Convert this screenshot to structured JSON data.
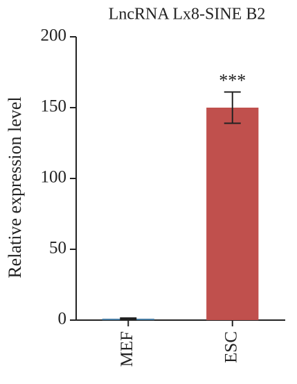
{
  "chart_data": {
    "type": "bar",
    "title": "LncRNA Lx8-SINE B2",
    "y_label": "Relative expression level",
    "categories": [
      "MEF",
      "ESC"
    ],
    "series": [
      {
        "values": [
          1,
          150
        ],
        "errors": [
          0.5,
          11
        ],
        "colors": [
          "#4a7fa6",
          "#c0504d"
        ]
      }
    ],
    "annotations": [
      {
        "category": 1,
        "text": "***"
      }
    ],
    "ylim": [
      0,
      200
    ],
    "yticks": [
      0,
      50,
      100,
      150,
      200
    ]
  }
}
